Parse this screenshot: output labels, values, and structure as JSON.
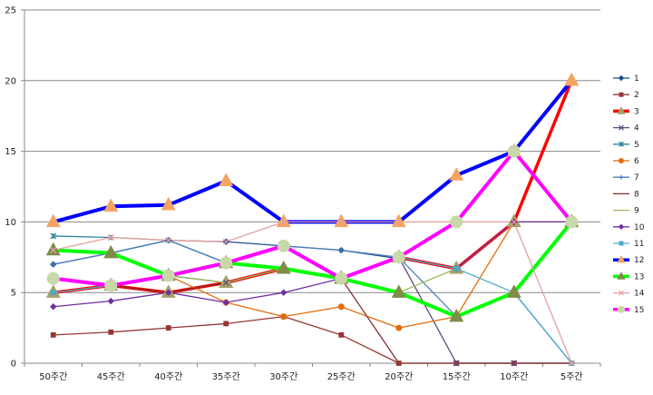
{
  "chart_data": {
    "type": "line",
    "title": "",
    "xlabel": "",
    "ylabel": "",
    "categories": [
      "50주간",
      "45주간",
      "40주간",
      "35주간",
      "30주간",
      "25주간",
      "20주간",
      "15주간",
      "10주간",
      "5주간"
    ],
    "ylim": [
      0,
      25
    ],
    "yticks": [
      0,
      5,
      10,
      15,
      20,
      25
    ],
    "grid": true,
    "legend_position": "right",
    "series": [
      {
        "name": "1",
        "color": "#1f4e8c",
        "marker": "diamond",
        "width": 1.3,
        "values": [
          7,
          7.8,
          8.7,
          8.6,
          8.3,
          8,
          7.4,
          6.7,
          10,
          10
        ]
      },
      {
        "name": "2",
        "color": "#953735",
        "marker": "square",
        "width": 1.3,
        "values": [
          2,
          2.2,
          2.5,
          2.8,
          3.3,
          2,
          0,
          0,
          0,
          0
        ]
      },
      {
        "name": "3",
        "color": "#ff0000",
        "marker": "triangle",
        "width": 3.5,
        "values": [
          5,
          5.5,
          5,
          5.7,
          6.7,
          6,
          7.5,
          6.7,
          10,
          20
        ]
      },
      {
        "name": "4",
        "color": "#604a7b",
        "marker": "x",
        "width": 1.3,
        "values": [
          6,
          5.5,
          6.2,
          5.7,
          6.7,
          6,
          7.5,
          0,
          0,
          0
        ]
      },
      {
        "name": "5",
        "color": "#31859c",
        "marker": "star",
        "width": 1.3,
        "values": [
          9,
          8.9,
          8.7,
          7.1,
          6.7,
          6,
          5,
          3.3,
          5,
          10
        ]
      },
      {
        "name": "6",
        "color": "#e46c0a",
        "marker": "circle",
        "width": 1.3,
        "values": [
          6,
          5.5,
          6.2,
          4.3,
          3.3,
          4,
          2.5,
          3.3,
          10,
          10
        ]
      },
      {
        "name": "7",
        "color": "#4a7ebb",
        "marker": "plus",
        "width": 1.3,
        "values": [
          7,
          7.8,
          8.7,
          7.1,
          8.3,
          8,
          7.5,
          3.3,
          5,
          0
        ]
      },
      {
        "name": "8",
        "color": "#7f2f2f",
        "marker": "none",
        "width": 1.3,
        "values": [
          6,
          5.5,
          5,
          5.7,
          6.7,
          6,
          0,
          0,
          0,
          0
        ]
      },
      {
        "name": "9",
        "color": "#9bbb59",
        "marker": "none",
        "width": 1.3,
        "values": [
          6,
          5.5,
          6.2,
          5.7,
          6.7,
          6,
          5,
          6.7,
          10,
          10
        ]
      },
      {
        "name": "10",
        "color": "#7030a0",
        "marker": "diamond",
        "width": 1.3,
        "values": [
          4,
          4.4,
          5,
          4.3,
          5,
          6,
          7.5,
          6.7,
          10,
          10
        ]
      },
      {
        "name": "11",
        "color": "#4bacc6",
        "marker": "square",
        "width": 1.3,
        "values": [
          5,
          5.5,
          6.2,
          7.1,
          6.7,
          6,
          7.5,
          6.7,
          5,
          0
        ]
      },
      {
        "name": "12",
        "color": "#0000ff",
        "marker": "triangle",
        "width": 4,
        "values": [
          10,
          11.1,
          11.2,
          12.9,
          10,
          10,
          10,
          13.3,
          15,
          20
        ]
      },
      {
        "name": "13",
        "color": "#00ff00",
        "marker": "triangle",
        "width": 4,
        "values": [
          8,
          7.8,
          6.2,
          7.1,
          6.7,
          6,
          5,
          3.3,
          5,
          10
        ]
      },
      {
        "name": "14",
        "color": "#e6a0a0",
        "marker": "x",
        "width": 1.3,
        "values": [
          8,
          8.9,
          8.7,
          8.6,
          10,
          10,
          10,
          10,
          10,
          0
        ]
      },
      {
        "name": "15",
        "color": "#ff00ff",
        "marker": "circle",
        "width": 4,
        "values": [
          6,
          5.5,
          6.2,
          7.1,
          8.3,
          6,
          7.5,
          10,
          15,
          10
        ]
      }
    ]
  }
}
